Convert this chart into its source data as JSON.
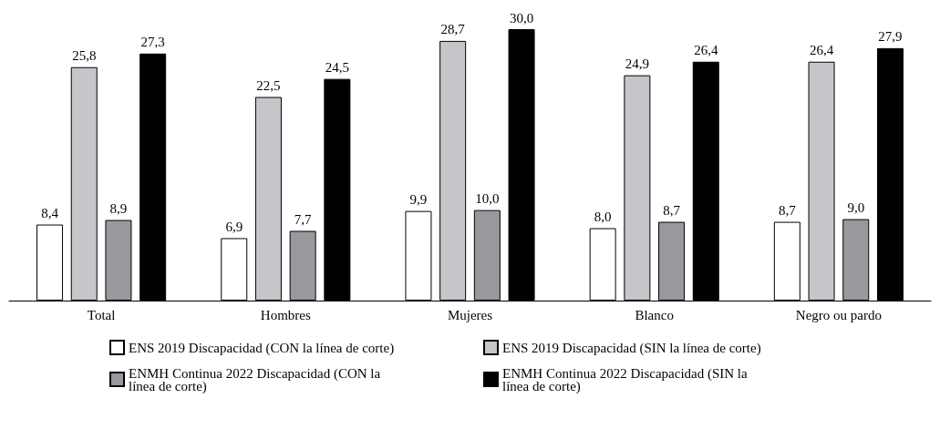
{
  "chart_data": {
    "type": "bar",
    "categories": [
      "Total",
      "Hombres",
      "Mujeres",
      "Blanco",
      "Negro ou pardo"
    ],
    "series": [
      {
        "name": "ENS 2019 Discapacidad (CON la línea de corte)",
        "color": "#ffffff",
        "values": [
          8.4,
          6.9,
          9.9,
          8.0,
          8.7
        ],
        "value_labels": [
          "8,4",
          "6,9",
          "9,9",
          "8,0",
          "8,7"
        ]
      },
      {
        "name": "ENS 2019 Discapacidad (SIN la línea de corte)",
        "color": "#c6c6ca",
        "values": [
          25.8,
          22.5,
          28.7,
          24.9,
          26.4
        ],
        "value_labels": [
          "25,8",
          "22,5",
          "28,7",
          "24,9",
          "26,4"
        ]
      },
      {
        "name": "ENMH Continua 2022 Discapacidad (CON la línea de corte)",
        "color": "#9a989e",
        "values": [
          8.9,
          7.7,
          10.0,
          8.7,
          9.0
        ],
        "value_labels": [
          "8,9",
          "7,7",
          "10,0",
          "8,7",
          "9,0"
        ]
      },
      {
        "name": "ENMH Continua 2022 Discapacidad (SIN la línea de corte)",
        "color": "#000000",
        "values": [
          27.3,
          24.5,
          30.0,
          26.4,
          27.9
        ],
        "value_labels": [
          "27,3",
          "24,5",
          "30,0",
          "26,4",
          "27,9"
        ]
      }
    ],
    "legend": "bottom",
    "grid": false,
    "tick_labels": "x"
  }
}
